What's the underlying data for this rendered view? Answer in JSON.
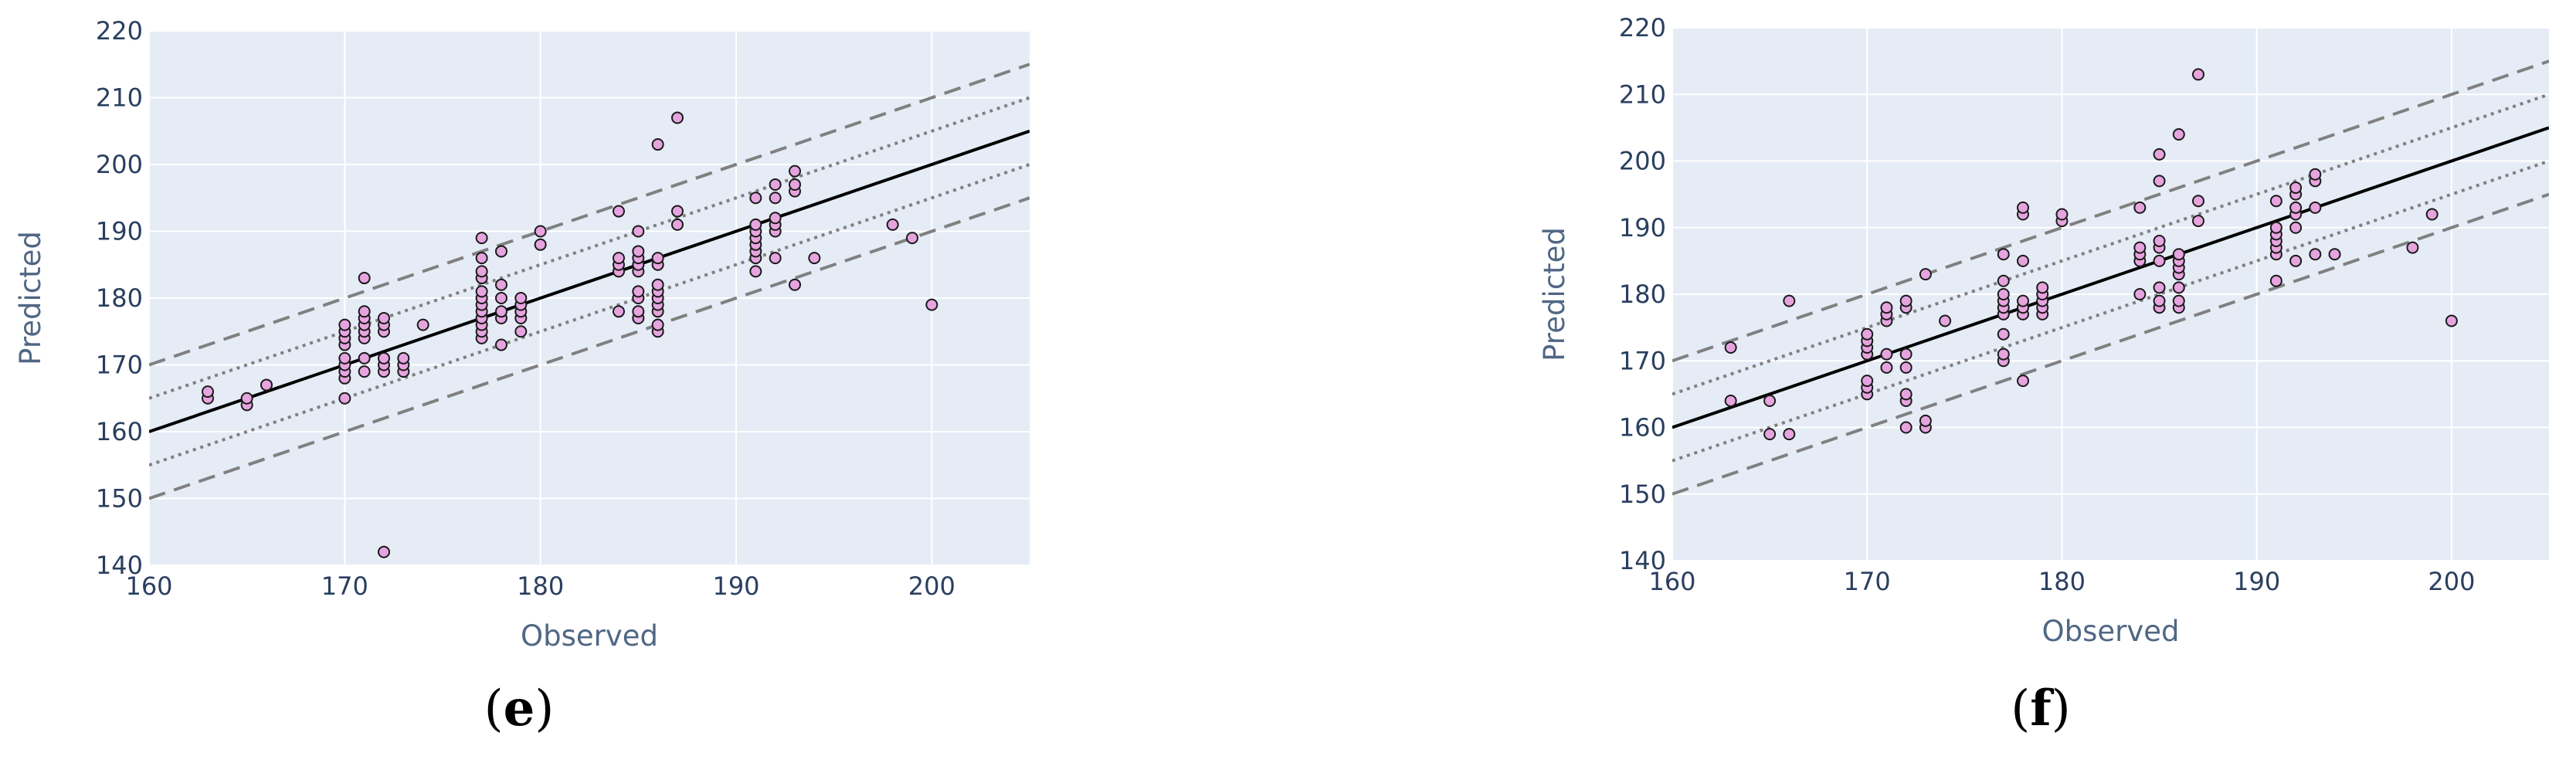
{
  "colors": {
    "plot_bg": "#e5ecf6",
    "grid": "#ffffff",
    "tick_text": "#2a3f5f",
    "axis_title": "#506784",
    "marker_fill": "#e6a4df",
    "marker_edge": "#1a1a1a",
    "identity_line": "#000000",
    "band_line": "#808080"
  },
  "chart_data": [
    {
      "type": "scatter",
      "caption": {
        "open": "(",
        "letter": "e",
        "close": ")"
      },
      "xlabel": "Observed",
      "ylabel": "Predicted",
      "xlim": [
        160,
        205
      ],
      "ylim": [
        140,
        220
      ],
      "xticks": [
        160,
        170,
        180,
        190,
        200
      ],
      "yticks": [
        140,
        150,
        160,
        170,
        180,
        190,
        200,
        210,
        220
      ],
      "grid": true,
      "reference_lines": [
        {
          "style": "solid",
          "offset": 0
        },
        {
          "style": "dotted",
          "offset": 5
        },
        {
          "style": "dotted",
          "offset": -5
        },
        {
          "style": "dashed",
          "offset": 10
        },
        {
          "style": "dashed",
          "offset": -10
        }
      ],
      "points": [
        [
          163,
          165
        ],
        [
          163,
          166
        ],
        [
          165,
          164
        ],
        [
          165,
          165
        ],
        [
          166,
          167
        ],
        [
          170,
          165
        ],
        [
          170,
          168
        ],
        [
          170,
          169
        ],
        [
          170,
          170
        ],
        [
          170,
          171
        ],
        [
          170,
          173
        ],
        [
          170,
          174
        ],
        [
          170,
          175
        ],
        [
          170,
          176
        ],
        [
          171,
          169
        ],
        [
          171,
          171
        ],
        [
          171,
          174
        ],
        [
          171,
          175
        ],
        [
          171,
          176
        ],
        [
          171,
          177
        ],
        [
          171,
          178
        ],
        [
          171,
          183
        ],
        [
          172,
          142
        ],
        [
          172,
          169
        ],
        [
          172,
          170
        ],
        [
          172,
          171
        ],
        [
          172,
          175
        ],
        [
          172,
          176
        ],
        [
          172,
          177
        ],
        [
          173,
          169
        ],
        [
          173,
          170
        ],
        [
          173,
          171
        ],
        [
          174,
          176
        ],
        [
          177,
          174
        ],
        [
          177,
          175
        ],
        [
          177,
          176
        ],
        [
          177,
          177
        ],
        [
          177,
          178
        ],
        [
          177,
          179
        ],
        [
          177,
          180
        ],
        [
          177,
          181
        ],
        [
          177,
          183
        ],
        [
          177,
          184
        ],
        [
          177,
          186
        ],
        [
          177,
          189
        ],
        [
          178,
          173
        ],
        [
          178,
          177
        ],
        [
          178,
          178
        ],
        [
          178,
          180
        ],
        [
          178,
          182
        ],
        [
          178,
          187
        ],
        [
          179,
          175
        ],
        [
          179,
          177
        ],
        [
          179,
          178
        ],
        [
          179,
          179
        ],
        [
          179,
          180
        ],
        [
          180,
          188
        ],
        [
          180,
          190
        ],
        [
          184,
          178
        ],
        [
          184,
          184
        ],
        [
          184,
          185
        ],
        [
          184,
          186
        ],
        [
          184,
          193
        ],
        [
          185,
          177
        ],
        [
          185,
          178
        ],
        [
          185,
          180
        ],
        [
          185,
          181
        ],
        [
          185,
          184
        ],
        [
          185,
          185
        ],
        [
          185,
          186
        ],
        [
          185,
          187
        ],
        [
          185,
          190
        ],
        [
          186,
          175
        ],
        [
          186,
          176
        ],
        [
          186,
          178
        ],
        [
          186,
          179
        ],
        [
          186,
          180
        ],
        [
          186,
          181
        ],
        [
          186,
          182
        ],
        [
          186,
          185
        ],
        [
          186,
          186
        ],
        [
          186,
          203
        ],
        [
          187,
          191
        ],
        [
          187,
          193
        ],
        [
          187,
          207
        ],
        [
          191,
          184
        ],
        [
          191,
          186
        ],
        [
          191,
          187
        ],
        [
          191,
          188
        ],
        [
          191,
          189
        ],
        [
          191,
          190
        ],
        [
          191,
          191
        ],
        [
          191,
          195
        ],
        [
          192,
          186
        ],
        [
          192,
          190
        ],
        [
          192,
          191
        ],
        [
          192,
          192
        ],
        [
          192,
          195
        ],
        [
          192,
          197
        ],
        [
          193,
          182
        ],
        [
          193,
          196
        ],
        [
          193,
          197
        ],
        [
          193,
          199
        ],
        [
          194,
          186
        ],
        [
          198,
          191
        ],
        [
          199,
          189
        ],
        [
          200,
          179
        ]
      ]
    },
    {
      "type": "scatter",
      "caption": {
        "open": "(",
        "letter": "f",
        "close": ")"
      },
      "xlabel": "Observed",
      "ylabel": "Predicted",
      "xlim": [
        160,
        205
      ],
      "ylim": [
        140,
        220
      ],
      "xticks": [
        160,
        170,
        180,
        190,
        200
      ],
      "yticks": [
        140,
        150,
        160,
        170,
        180,
        190,
        200,
        210,
        220
      ],
      "grid": true,
      "reference_lines": [
        {
          "style": "solid",
          "offset": 0
        },
        {
          "style": "dotted",
          "offset": 5
        },
        {
          "style": "dotted",
          "offset": -5
        },
        {
          "style": "dashed",
          "offset": 10
        },
        {
          "style": "dashed",
          "offset": -10
        }
      ],
      "points": [
        [
          163,
          164
        ],
        [
          163,
          172
        ],
        [
          165,
          159
        ],
        [
          165,
          164
        ],
        [
          166,
          159
        ],
        [
          166,
          179
        ],
        [
          170,
          165
        ],
        [
          170,
          166
        ],
        [
          170,
          167
        ],
        [
          170,
          171
        ],
        [
          170,
          172
        ],
        [
          170,
          173
        ],
        [
          170,
          174
        ],
        [
          171,
          169
        ],
        [
          171,
          171
        ],
        [
          171,
          176
        ],
        [
          171,
          177
        ],
        [
          171,
          178
        ],
        [
          172,
          160
        ],
        [
          172,
          164
        ],
        [
          172,
          165
        ],
        [
          172,
          169
        ],
        [
          172,
          171
        ],
        [
          172,
          178
        ],
        [
          172,
          179
        ],
        [
          173,
          160
        ],
        [
          173,
          161
        ],
        [
          173,
          183
        ],
        [
          174,
          176
        ],
        [
          177,
          170
        ],
        [
          177,
          171
        ],
        [
          177,
          174
        ],
        [
          177,
          177
        ],
        [
          177,
          178
        ],
        [
          177,
          179
        ],
        [
          177,
          180
        ],
        [
          177,
          182
        ],
        [
          177,
          186
        ],
        [
          178,
          167
        ],
        [
          178,
          177
        ],
        [
          178,
          178
        ],
        [
          178,
          179
        ],
        [
          178,
          185
        ],
        [
          178,
          192
        ],
        [
          178,
          193
        ],
        [
          179,
          177
        ],
        [
          179,
          178
        ],
        [
          179,
          179
        ],
        [
          179,
          180
        ],
        [
          179,
          181
        ],
        [
          180,
          191
        ],
        [
          180,
          192
        ],
        [
          184,
          180
        ],
        [
          184,
          185
        ],
        [
          184,
          186
        ],
        [
          184,
          187
        ],
        [
          184,
          193
        ],
        [
          185,
          178
        ],
        [
          185,
          179
        ],
        [
          185,
          181
        ],
        [
          185,
          185
        ],
        [
          185,
          187
        ],
        [
          185,
          188
        ],
        [
          185,
          197
        ],
        [
          185,
          201
        ],
        [
          186,
          178
        ],
        [
          186,
          179
        ],
        [
          186,
          181
        ],
        [
          186,
          183
        ],
        [
          186,
          184
        ],
        [
          186,
          185
        ],
        [
          186,
          186
        ],
        [
          186,
          204
        ],
        [
          187,
          191
        ],
        [
          187,
          194
        ],
        [
          187,
          213
        ],
        [
          191,
          182
        ],
        [
          191,
          186
        ],
        [
          191,
          187
        ],
        [
          191,
          188
        ],
        [
          191,
          189
        ],
        [
          191,
          190
        ],
        [
          191,
          194
        ],
        [
          192,
          185
        ],
        [
          192,
          190
        ],
        [
          192,
          192
        ],
        [
          192,
          193
        ],
        [
          192,
          195
        ],
        [
          192,
          196
        ],
        [
          193,
          186
        ],
        [
          193,
          193
        ],
        [
          193,
          197
        ],
        [
          193,
          198
        ],
        [
          194,
          186
        ],
        [
          198,
          187
        ],
        [
          199,
          192
        ],
        [
          200,
          176
        ]
      ]
    }
  ]
}
